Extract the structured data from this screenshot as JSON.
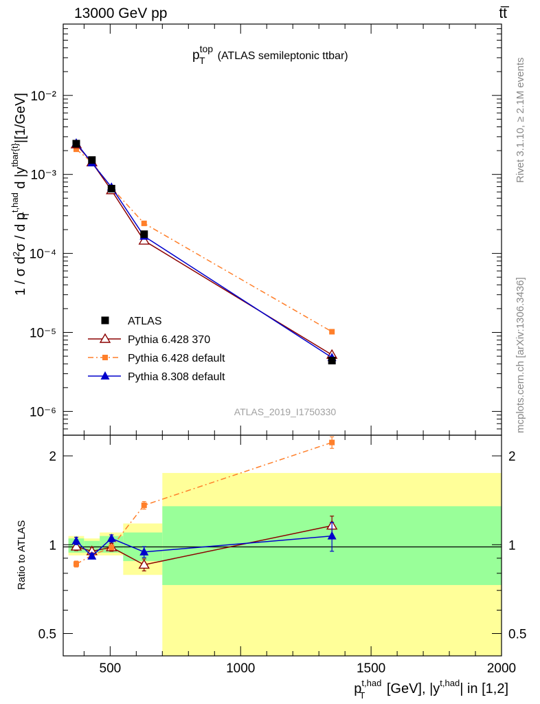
{
  "header": {
    "left": "13000 GeV pp",
    "right": "tt̅"
  },
  "side_labels": {
    "rivet": "Rivet 3.1.10, ≥ 2.1M events",
    "mcplots": "mcplots.cern.ch [arXiv:1306.3436]"
  },
  "chart_data": [
    {
      "type": "line",
      "panel": "main",
      "title": "p_T^top (ATLAS semileptonic ttbar)",
      "ylabel": "1 / σ d²σ / d p_T^{t,had} d |y^{tbar{t}}| [1/GeV]",
      "yscale": "log",
      "xlim": [
        320,
        2000
      ],
      "ylim": [
        5e-07,
        0.08
      ],
      "y_tick_labels": [
        "10⁻⁶",
        "10⁻⁵",
        "10⁻⁴",
        "10⁻³",
        "10⁻²"
      ],
      "watermark": "ATLAS_2019_I1750330",
      "legend_position": "middle-left",
      "series": [
        {
          "name": "ATLAS",
          "color": "#000000",
          "marker": "square",
          "x": [
            370,
            430,
            505,
            630,
            1350
          ],
          "y": [
            0.00245,
            0.00152,
            0.00066,
            0.000175,
            4.4e-06
          ]
        },
        {
          "name": "Pythia 6.428 370",
          "color": "#8b0000",
          "marker": "open-triangle",
          "x": [
            370,
            430,
            505,
            630,
            1350
          ],
          "y": [
            0.0024,
            0.00142,
            0.00063,
            0.000145,
            5.2e-06
          ]
        },
        {
          "name": "Pythia 6.428 default",
          "color": "#ff7f2a",
          "marker": "small-square",
          "dash": "dashdot",
          "x": [
            370,
            430,
            505,
            630,
            1350
          ],
          "y": [
            0.00208,
            0.00143,
            0.00068,
            0.00024,
            1.02e-05
          ]
        },
        {
          "name": "Pythia 8.308 default",
          "color": "#0000cc",
          "marker": "filled-triangle",
          "x": [
            370,
            430,
            505,
            630,
            1350
          ],
          "y": [
            0.0025,
            0.0014,
            0.00069,
            0.000165,
            4.8e-06
          ]
        }
      ]
    },
    {
      "type": "line",
      "panel": "ratio",
      "ylabel": "Ratio to ATLAS",
      "xlabel": "p_T^{t,had} [GeV], |y^{t,had}| in [1,2]",
      "xlim": [
        320,
        2000
      ],
      "ylim": [
        0.42,
        2.35
      ],
      "x_tick_labels": [
        "500",
        "1000",
        "1500",
        "2000"
      ],
      "y_tick_labels": [
        "0.5",
        "1",
        "2"
      ],
      "bins": [
        {
          "lo": 340,
          "hi": 400,
          "inner": [
            0.94,
            1.05
          ],
          "outer": [
            0.92,
            1.07
          ]
        },
        {
          "lo": 400,
          "hi": 460,
          "inner": [
            0.94,
            1.03
          ],
          "outer": [
            0.92,
            1.05
          ]
        },
        {
          "lo": 460,
          "hi": 550,
          "inner": [
            0.94,
            1.07
          ],
          "outer": [
            0.92,
            1.1
          ]
        },
        {
          "lo": 550,
          "hi": 700,
          "inner": [
            0.88,
            1.1
          ],
          "outer": [
            0.79,
            1.18
          ]
        },
        {
          "lo": 700,
          "hi": 2000,
          "inner": [
            0.73,
            1.35
          ],
          "outer": [
            0.33,
            1.75
          ]
        }
      ],
      "series": [
        {
          "name": "Pythia 6.428 370",
          "color": "#8b0000",
          "marker": "open-triangle",
          "x": [
            370,
            430,
            505,
            630,
            1350
          ],
          "y": [
            0.985,
            0.95,
            0.98,
            0.855,
            1.16
          ],
          "err": [
            0.03,
            0.03,
            0.03,
            0.04,
            0.09
          ]
        },
        {
          "name": "Pythia 6.428 default",
          "color": "#ff7f2a",
          "marker": "small-square",
          "dash": "dashdot",
          "x": [
            370,
            430,
            505,
            630,
            1350
          ],
          "y": [
            0.86,
            0.92,
            0.98,
            1.36,
            2.22
          ],
          "err": [
            0.02,
            0.02,
            0.02,
            0.04,
            0.1
          ]
        },
        {
          "name": "Pythia 8.308 default",
          "color": "#0000cc",
          "marker": "filled-triangle",
          "x": [
            370,
            430,
            505,
            630,
            1350
          ],
          "y": [
            1.03,
            0.915,
            1.05,
            0.945,
            1.07
          ],
          "err": [
            0.03,
            0.02,
            0.03,
            0.04,
            0.12
          ]
        }
      ]
    }
  ]
}
